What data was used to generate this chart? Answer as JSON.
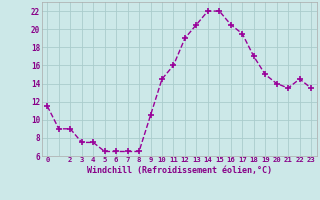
{
  "x": [
    0,
    1,
    2,
    3,
    4,
    5,
    6,
    7,
    8,
    9,
    10,
    11,
    12,
    13,
    14,
    15,
    16,
    17,
    18,
    19,
    20,
    21,
    22,
    23
  ],
  "y": [
    11.5,
    9.0,
    9.0,
    7.5,
    7.5,
    6.5,
    6.5,
    6.5,
    6.5,
    10.5,
    14.5,
    16.0,
    19.0,
    20.5,
    22.0,
    22.0,
    20.5,
    19.5,
    17.0,
    15.0,
    14.0,
    13.5,
    14.5,
    13.5
  ],
  "line_color": "#990099",
  "marker": "+",
  "marker_size": 4,
  "marker_lw": 1.2,
  "bg_color": "#cce8e8",
  "grid_color": "#aacccc",
  "xlabel": "Windchill (Refroidissement éolien,°C)",
  "xlabel_color": "#880088",
  "ylim": [
    6,
    23
  ],
  "xlim": [
    -0.5,
    23.5
  ],
  "yticks": [
    6,
    8,
    10,
    12,
    14,
    16,
    18,
    20,
    22
  ],
  "xticks": [
    0,
    1,
    2,
    3,
    4,
    5,
    6,
    7,
    8,
    9,
    10,
    11,
    12,
    13,
    14,
    15,
    16,
    17,
    18,
    19,
    20,
    21,
    22,
    23
  ],
  "xtick_labels": [
    "0",
    "",
    "2",
    "3",
    "4",
    "5",
    "6",
    "7",
    "8",
    "9",
    "10",
    "11",
    "12",
    "13",
    "14",
    "15",
    "16",
    "17",
    "18",
    "19",
    "20",
    "21",
    "22",
    "23"
  ],
  "tick_color": "#880088",
  "spine_color": "#aaaaaa",
  "line_width": 1.0
}
